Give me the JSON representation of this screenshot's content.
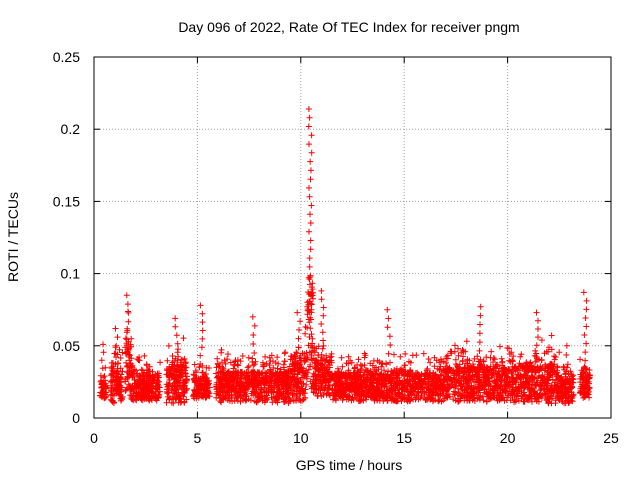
{
  "chart_data": {
    "type": "scatter",
    "title": "Day 096 of 2022, Rate Of TEC Index for receiver pngm",
    "xlabel": "GPS time / hours",
    "ylabel": "ROTI / TECUs",
    "xlim": [
      0,
      25
    ],
    "ylim": [
      0,
      0.25
    ],
    "x_ticks": [
      "0",
      "5",
      "10",
      "15",
      "20",
      "25"
    ],
    "y_ticks": [
      "0",
      "0.05",
      "0.1",
      "0.15",
      "0.2",
      "0.25"
    ],
    "grid": true,
    "marker": "+",
    "color": "#ff0000",
    "series": [
      {
        "name": "ROTI",
        "segments": [
          {
            "x": [
              0.3,
              0.6
            ],
            "base": 0.018,
            "spread": 0.012,
            "peak": 0.051
          },
          {
            "x": [
              0.8,
              1.4
            ],
            "base": 0.02,
            "spread": 0.02,
            "peak": 0.062
          },
          {
            "x": [
              1.5,
              1.8
            ],
            "base": 0.03,
            "spread": 0.03,
            "peak": 0.085
          },
          {
            "x": [
              1.8,
              3.2
            ],
            "base": 0.02,
            "spread": 0.015,
            "peak": 0.043
          },
          {
            "x": [
              3.5,
              4.5
            ],
            "base": 0.022,
            "spread": 0.022,
            "peak": 0.069
          },
          {
            "x": [
              4.8,
              5.6
            ],
            "base": 0.02,
            "spread": 0.012,
            "peak": 0.078
          },
          {
            "x": [
              5.9,
              9.5
            ],
            "base": 0.02,
            "spread": 0.018,
            "peak": 0.07
          },
          {
            "x": [
              9.5,
              10.3
            ],
            "base": 0.025,
            "spread": 0.025,
            "peak": 0.073
          },
          {
            "x": [
              10.3,
              10.6
            ],
            "base": 0.05,
            "spread": 0.06,
            "peak": 0.214
          },
          {
            "x": [
              10.6,
              11.5
            ],
            "base": 0.025,
            "spread": 0.02,
            "peak": 0.088
          },
          {
            "x": [
              11.5,
              17.0
            ],
            "base": 0.02,
            "spread": 0.016,
            "peak": 0.075
          },
          {
            "x": [
              17.0,
              20.3
            ],
            "base": 0.022,
            "spread": 0.02,
            "peak": 0.077
          },
          {
            "x": [
              20.3,
              22.5
            ],
            "base": 0.022,
            "spread": 0.022,
            "peak": 0.073
          },
          {
            "x": [
              22.5,
              23.2
            ],
            "base": 0.018,
            "spread": 0.015,
            "peak": 0.05
          },
          {
            "x": [
              23.5,
              24.0
            ],
            "base": 0.022,
            "spread": 0.015,
            "peak": 0.087
          }
        ]
      }
    ]
  }
}
